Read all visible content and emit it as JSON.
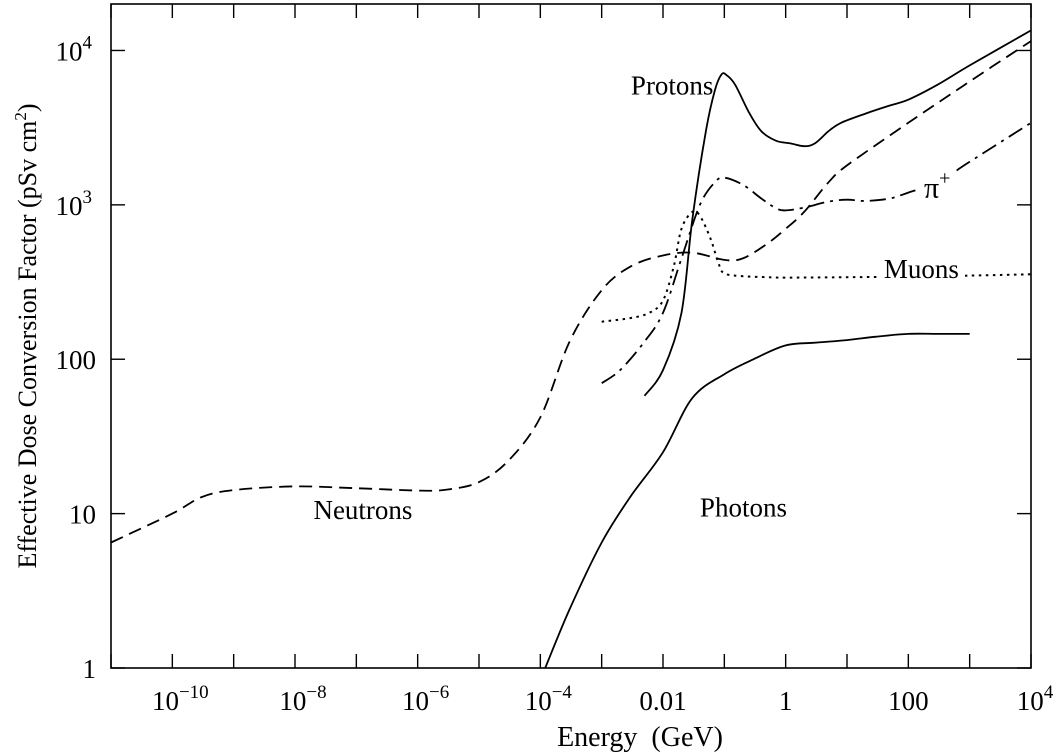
{
  "chart_data": {
    "type": "line",
    "title": "",
    "xlabel": "Energy  (GeV)",
    "ylabel": "Effective Dose Conversion Factor (pSv cm",
    "ylabel_sup": "2",
    "ylabel_end": ")",
    "xscale": "log",
    "yscale": "log",
    "xlim": [
      1e-11,
      10000
    ],
    "ylim": [
      1,
      20000
    ],
    "grid": false,
    "legend": "none (curves labelled directly)",
    "x_ticks": [
      {
        "value": 1e-10,
        "base": "10",
        "exp": "−10"
      },
      {
        "value": 1e-08,
        "base": "10",
        "exp": "−8"
      },
      {
        "value": 1e-06,
        "base": "10",
        "exp": "−6"
      },
      {
        "value": 0.0001,
        "base": "10",
        "exp": "−4"
      },
      {
        "value": 0.01,
        "base": "0.01",
        "exp": ""
      },
      {
        "value": 1,
        "base": "1",
        "exp": ""
      },
      {
        "value": 100,
        "base": "100",
        "exp": ""
      },
      {
        "value": 10000,
        "base": "10",
        "exp": "4"
      }
    ],
    "y_ticks": [
      {
        "value": 1,
        "base": "1",
        "exp": ""
      },
      {
        "value": 10,
        "base": "10",
        "exp": ""
      },
      {
        "value": 100,
        "base": "100",
        "exp": ""
      },
      {
        "value": 1000,
        "base": "10",
        "exp": "3"
      },
      {
        "value": 10000,
        "base": "10",
        "exp": "4"
      }
    ],
    "series": [
      {
        "name": "Neutrons",
        "style": "dashed",
        "label_at": [
          2e-08,
          9.2
        ],
        "points": [
          [
            1e-11,
            6.5
          ],
          [
            1e-10,
            10
          ],
          [
            3e-10,
            12.8
          ],
          [
            1e-09,
            14.2
          ],
          [
            1e-08,
            15
          ],
          [
            1e-07,
            14.6
          ],
          [
            1e-06,
            14.1
          ],
          [
            3e-06,
            14.3
          ],
          [
            1e-05,
            16
          ],
          [
            3e-05,
            22
          ],
          [
            0.0001,
            42
          ],
          [
            0.0003,
            130
          ],
          [
            0.001,
            280
          ],
          [
            0.003,
            400
          ],
          [
            0.01,
            470
          ],
          [
            0.03,
            490
          ],
          [
            0.1,
            440
          ],
          [
            0.2,
            450
          ],
          [
            0.5,
            560
          ],
          [
            1,
            700
          ],
          [
            2,
            900
          ],
          [
            5,
            1400
          ],
          [
            10,
            1800
          ],
          [
            100,
            3400
          ],
          [
            1000,
            6300
          ],
          [
            10000,
            11500
          ]
        ]
      },
      {
        "name": "Protons",
        "style": "solid",
        "label_at": [
          0.003,
          5200
        ],
        "points": [
          [
            0.005,
            58
          ],
          [
            0.01,
            85
          ],
          [
            0.02,
            200
          ],
          [
            0.03,
            800
          ],
          [
            0.05,
            3000
          ],
          [
            0.07,
            5500
          ],
          [
            0.09,
            7000
          ],
          [
            0.11,
            6900
          ],
          [
            0.15,
            6000
          ],
          [
            0.25,
            4000
          ],
          [
            0.4,
            3000
          ],
          [
            0.7,
            2600
          ],
          [
            1.2,
            2500
          ],
          [
            2,
            2400
          ],
          [
            3,
            2500
          ],
          [
            5,
            3000
          ],
          [
            8,
            3400
          ],
          [
            20,
            3900
          ],
          [
            50,
            4400
          ],
          [
            100,
            4800
          ],
          [
            300,
            6000
          ],
          [
            1000,
            8000
          ],
          [
            10000,
            13500
          ]
        ]
      },
      {
        "name": "π",
        "name_sup": "+",
        "style": "dash-dot",
        "label_at": [
          180,
          1120
        ],
        "points": [
          [
            0.001,
            70
          ],
          [
            0.002,
            85
          ],
          [
            0.005,
            130
          ],
          [
            0.01,
            200
          ],
          [
            0.02,
            450
          ],
          [
            0.04,
            1000
          ],
          [
            0.07,
            1400
          ],
          [
            0.1,
            1500
          ],
          [
            0.2,
            1350
          ],
          [
            0.4,
            1100
          ],
          [
            0.7,
            950
          ],
          [
            1,
            920
          ],
          [
            2,
            960
          ],
          [
            5,
            1050
          ],
          [
            10,
            1080
          ],
          [
            20,
            1060
          ],
          [
            50,
            1100
          ],
          [
            100,
            1200
          ],
          [
            300,
            1400
          ],
          [
            1000,
            1900
          ],
          [
            10000,
            3400
          ]
        ]
      },
      {
        "name": "Muons",
        "style": "dotted",
        "label_at": [
          40,
          335
        ],
        "points": [
          [
            0.001,
            175
          ],
          [
            0.003,
            185
          ],
          [
            0.006,
            200
          ],
          [
            0.01,
            240
          ],
          [
            0.015,
            400
          ],
          [
            0.02,
            700
          ],
          [
            0.03,
            900
          ],
          [
            0.04,
            850
          ],
          [
            0.06,
            600
          ],
          [
            0.08,
            420
          ],
          [
            0.1,
            360
          ],
          [
            0.2,
            345
          ],
          [
            0.5,
            340
          ],
          [
            1,
            338
          ],
          [
            10,
            340
          ],
          [
            100,
            343
          ],
          [
            1000,
            348
          ],
          [
            10000,
            355
          ]
        ]
      },
      {
        "name": "Photons",
        "style": "solid",
        "label_at": [
          0.04,
          9.6
        ],
        "points": [
          [
            0.00012,
            1
          ],
          [
            0.0003,
            2.4
          ],
          [
            0.001,
            6.5
          ],
          [
            0.003,
            13
          ],
          [
            0.01,
            25
          ],
          [
            0.03,
            56
          ],
          [
            0.1,
            80
          ],
          [
            0.3,
            100
          ],
          [
            1,
            123
          ],
          [
            3,
            128
          ],
          [
            10,
            133
          ],
          [
            30,
            140
          ],
          [
            100,
            146
          ],
          [
            300,
            146
          ],
          [
            1000,
            146
          ]
        ]
      }
    ]
  }
}
